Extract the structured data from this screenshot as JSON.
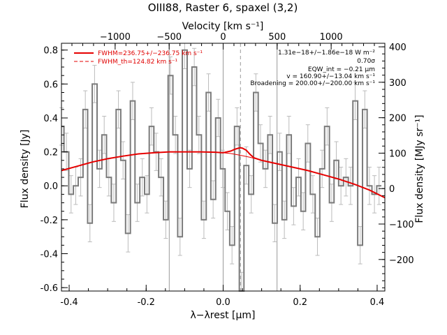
{
  "colors": {
    "model": "#e60000",
    "spectrum": "#7a7a7a",
    "errorbar": "#bbbbbb",
    "vline": "#9a9a9a",
    "frame": "#000000"
  },
  "chart_data": {
    "type": "line",
    "title": "OIII88, Raster 6, spaxel (3,2)",
    "xlabel": "λ−λrest [μm]",
    "ylabel": "Flux density [Jy]",
    "x2label": "Velocity [km s⁻¹]",
    "y2label": "Flux density [MJy sr⁻¹]",
    "xlim": [
      -0.42,
      0.42
    ],
    "ylim": [
      -0.62,
      0.84
    ],
    "x2lim": [
      -1497,
      1497
    ],
    "y2lim": [
      -289,
      410
    ],
    "x_ticks": [
      "-0.4",
      "-0.2",
      "0.0",
      "0.2",
      "0.4"
    ],
    "y_ticks": [
      "-0.6",
      "-0.4",
      "-0.2",
      "0.0",
      "0.2",
      "0.4",
      "0.6",
      "0.8"
    ],
    "x2_ticks": [
      "−1000",
      "−500",
      "0",
      "500",
      "1000"
    ],
    "y2_ticks": [
      "−200",
      "−100",
      "0",
      "100",
      "200",
      "300",
      "400"
    ],
    "legend": [
      {
        "label": "FWHM=236.75+/−236.75 km s⁻¹",
        "style": "solid"
      },
      {
        "label": "FWHM_th=124.82 km s⁻¹",
        "style": "dashed"
      }
    ],
    "annotations": [
      "1.31e−18+/−1.86e−18 W m⁻²",
      "0.70σ",
      "EQW_int = −0.21 μm",
      "v = 160.90+/−13.04 km s⁻¹",
      "Broadening = 200.00+/−200.00 km s⁻¹"
    ],
    "vertical_lines": [
      {
        "x": -0.14,
        "style": "solid"
      },
      {
        "x": 0.0,
        "style": "solid"
      },
      {
        "x": 0.045,
        "style": "dashed"
      },
      {
        "x": 0.14,
        "style": "solid"
      }
    ],
    "spectrum": {
      "name": "Flux density",
      "x": [
        -0.42,
        -0.407,
        -0.395,
        -0.383,
        -0.37,
        -0.358,
        -0.346,
        -0.334,
        -0.321,
        -0.309,
        -0.297,
        -0.284,
        -0.272,
        -0.26,
        -0.247,
        -0.235,
        -0.223,
        -0.21,
        -0.198,
        -0.186,
        -0.174,
        -0.161,
        -0.149,
        -0.137,
        -0.124,
        -0.112,
        -0.1,
        -0.087,
        -0.075,
        -0.063,
        -0.05,
        -0.038,
        -0.026,
        -0.013,
        -0.001,
        0.011,
        0.023,
        0.036,
        0.048,
        0.06,
        0.073,
        0.085,
        0.097,
        0.11,
        0.122,
        0.134,
        0.147,
        0.159,
        0.171,
        0.183,
        0.196,
        0.208,
        0.22,
        0.233,
        0.245,
        0.257,
        0.27,
        0.282,
        0.294,
        0.306,
        0.319,
        0.331,
        0.343,
        0.356,
        0.368,
        0.38,
        0.393,
        0.405
      ],
      "y": [
        0.35,
        0.2,
        -0.05,
        0.0,
        0.05,
        0.45,
        -0.22,
        0.6,
        0.1,
        0.3,
        0.05,
        -0.1,
        0.45,
        0.15,
        -0.28,
        0.5,
        -0.1,
        0.05,
        -0.05,
        0.35,
        0.2,
        0.05,
        -0.2,
        0.65,
        0.3,
        -0.3,
        0.8,
        0.1,
        0.7,
        0.3,
        -0.2,
        0.55,
        -0.08,
        0.4,
        0.1,
        -0.15,
        -0.35,
        0.35,
        -0.62,
        0.12,
        -0.05,
        0.55,
        0.25,
        0.1,
        0.3,
        -0.22,
        0.2,
        -0.2,
        0.3,
        -0.12,
        0.05,
        -0.15,
        0.25,
        -0.05,
        -0.3,
        0.1,
        0.35,
        -0.1,
        0.15,
        0.0,
        0.05,
        0.0,
        0.5,
        -0.35,
        0.45,
        0.0,
        -0.05,
        0.0
      ],
      "yerr": 0.11
    },
    "model": {
      "name": "Fit",
      "x": [
        -0.42,
        -0.38,
        -0.34,
        -0.3,
        -0.26,
        -0.22,
        -0.18,
        -0.14,
        -0.1,
        -0.06,
        -0.02,
        0.0,
        0.02,
        0.03,
        0.04,
        0.045,
        0.05,
        0.06,
        0.07,
        0.08,
        0.1,
        0.14,
        0.18,
        0.22,
        0.26,
        0.3,
        0.34,
        0.38,
        0.42
      ],
      "y": [
        0.09,
        0.115,
        0.14,
        0.16,
        0.175,
        0.188,
        0.195,
        0.2,
        0.2,
        0.2,
        0.198,
        0.195,
        0.205,
        0.215,
        0.222,
        0.224,
        0.222,
        0.21,
        0.185,
        0.165,
        0.15,
        0.13,
        0.11,
        0.09,
        0.065,
        0.04,
        0.01,
        -0.025,
        -0.07
      ]
    },
    "continuum": {
      "name": "Continuum",
      "x": [
        -0.42,
        -0.38,
        -0.34,
        -0.3,
        -0.26,
        -0.22,
        -0.18,
        -0.14,
        -0.1,
        -0.06,
        -0.02,
        0.0,
        0.02,
        0.045,
        0.07,
        0.1,
        0.14,
        0.18,
        0.22,
        0.26,
        0.3,
        0.34,
        0.38,
        0.42
      ],
      "y": [
        0.09,
        0.115,
        0.14,
        0.16,
        0.175,
        0.188,
        0.195,
        0.2,
        0.2,
        0.2,
        0.198,
        0.195,
        0.19,
        0.18,
        0.168,
        0.15,
        0.13,
        0.11,
        0.09,
        0.065,
        0.04,
        0.01,
        -0.025,
        -0.07
      ]
    }
  }
}
